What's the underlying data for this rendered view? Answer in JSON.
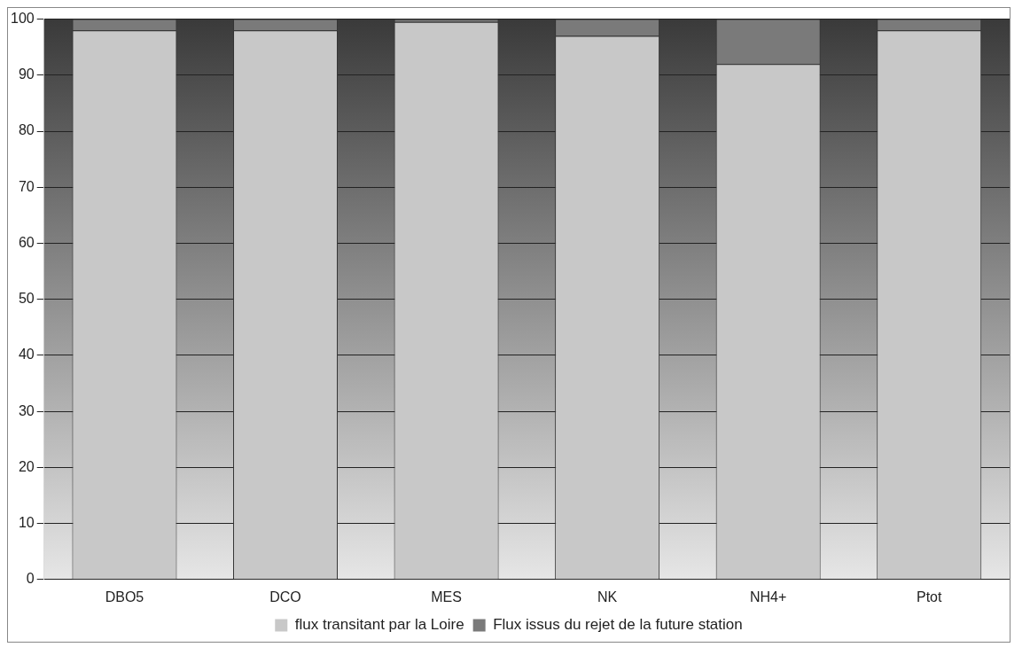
{
  "chart_data": {
    "type": "bar",
    "stacked": true,
    "categories": [
      "DBO5",
      "DCO",
      "MES",
      "NK",
      "NH4+",
      "Ptot"
    ],
    "series": [
      {
        "name": "flux transitant par la Loire",
        "color": "#c8c8c8",
        "values": [
          98,
          98,
          99.5,
          97,
          92,
          98
        ]
      },
      {
        "name": "Flux issus du rejet de la future station",
        "color": "#7a7a7a",
        "values": [
          2,
          2,
          0.5,
          3,
          8,
          2
        ]
      }
    ],
    "ylim": [
      0,
      100
    ],
    "yticks": [
      0,
      10,
      20,
      30,
      40,
      50,
      60,
      70,
      80,
      90,
      100
    ],
    "grid": "y",
    "legend": "bottom"
  }
}
